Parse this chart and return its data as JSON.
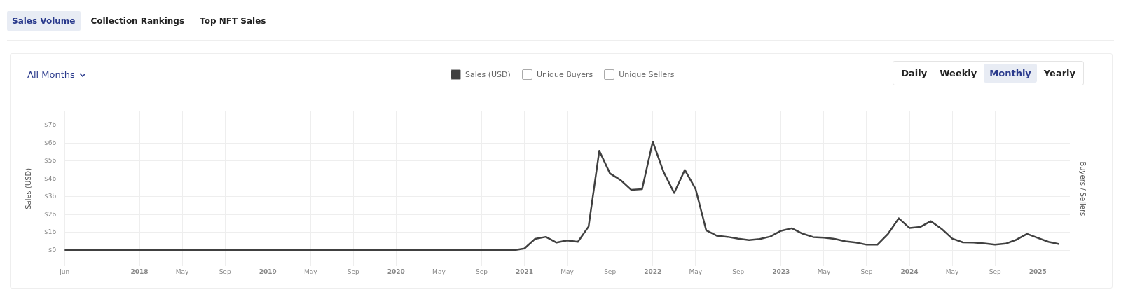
{
  "chart_data": {
    "type": "line",
    "ylabel": "Sales (USD)",
    "y2label": "Buyers / Sellers",
    "annotations": [
      "Sales Volume",
      "Collection Rankings",
      "Top NFT Sales",
      "All Months",
      "Daily",
      "Weekly",
      "Monthly",
      "Yearly"
    ],
    "x": [
      "2017-06",
      "2017-07",
      "2017-08",
      "2017-09",
      "2017-10",
      "2017-11",
      "2017-12",
      "2018-01",
      "2018-02",
      "2018-03",
      "2018-04",
      "2018-05",
      "2018-06",
      "2018-07",
      "2018-08",
      "2018-09",
      "2018-10",
      "2018-11",
      "2018-12",
      "2019-01",
      "2019-02",
      "2019-03",
      "2019-04",
      "2019-05",
      "2019-06",
      "2019-07",
      "2019-08",
      "2019-09",
      "2019-10",
      "2019-11",
      "2019-12",
      "2020-01",
      "2020-02",
      "2020-03",
      "2020-04",
      "2020-05",
      "2020-06",
      "2020-07",
      "2020-08",
      "2020-09",
      "2020-10",
      "2020-11",
      "2020-12",
      "2021-01",
      "2021-02",
      "2021-03",
      "2021-04",
      "2021-05",
      "2021-06",
      "2021-07",
      "2021-08",
      "2021-09",
      "2021-10",
      "2021-11",
      "2021-12",
      "2022-01",
      "2022-02",
      "2022-03",
      "2022-04",
      "2022-05",
      "2022-06",
      "2022-07",
      "2022-08",
      "2022-09",
      "2022-10",
      "2022-11",
      "2022-12",
      "2023-01",
      "2023-02",
      "2023-03",
      "2023-04",
      "2023-05",
      "2023-06",
      "2023-07",
      "2023-08",
      "2023-09",
      "2023-10",
      "2023-11",
      "2023-12",
      "2024-01",
      "2024-02",
      "2024-03",
      "2024-04",
      "2024-05",
      "2024-06",
      "2024-07",
      "2024-08",
      "2024-09",
      "2024-10",
      "2024-11",
      "2024-12",
      "2025-01",
      "2025-02",
      "2025-03"
    ],
    "series": [
      {
        "name": "Sales (USD)",
        "color": "#404040",
        "values": [
          0,
          0,
          0,
          0,
          0,
          0,
          0,
          0,
          0,
          0,
          0,
          0,
          0,
          0,
          0,
          0,
          0,
          0,
          0,
          0,
          0,
          0,
          0,
          0,
          0,
          0,
          0,
          0,
          0,
          0,
          0,
          0,
          0,
          0,
          0,
          0,
          0,
          0,
          0,
          0,
          0,
          0,
          0,
          0.1,
          0.64,
          0.75,
          0.43,
          0.55,
          0.47,
          1.33,
          5.57,
          4.3,
          3.93,
          3.38,
          3.42,
          6.08,
          4.4,
          3.21,
          4.5,
          3.44,
          1.11,
          0.81,
          0.75,
          0.65,
          0.57,
          0.63,
          0.77,
          1.09,
          1.23,
          0.93,
          0.74,
          0.71,
          0.64,
          0.5,
          0.43,
          0.31,
          0.31,
          0.92,
          1.79,
          1.25,
          1.3,
          1.63,
          1.2,
          0.65,
          0.44,
          0.43,
          0.38,
          0.31,
          0.37,
          0.59,
          0.92,
          0.69,
          0.47,
          0.34
        ]
      },
      {
        "name": "Unique Buyers",
        "color": "#ffffff",
        "values": [
          null,
          null,
          null,
          null,
          null,
          null,
          null,
          null,
          null,
          null,
          null,
          null,
          null,
          null,
          null,
          null,
          null,
          null,
          null,
          null,
          null,
          null,
          null,
          null,
          null,
          null,
          null,
          null,
          null,
          null,
          null,
          null,
          null,
          null,
          null,
          null,
          null,
          null,
          null,
          null,
          null,
          null,
          null,
          null,
          null,
          null,
          null,
          null,
          null,
          null,
          null,
          null,
          null,
          null,
          null,
          null,
          null,
          null,
          null,
          null,
          null,
          null,
          null,
          null,
          null,
          null,
          null,
          null,
          null,
          null,
          null,
          null,
          null,
          null,
          null,
          null,
          null,
          null,
          null,
          null,
          null,
          null,
          null,
          null,
          null,
          null,
          null,
          null,
          null,
          null,
          null,
          null,
          null,
          null
        ]
      },
      {
        "name": "Unique Sellers",
        "color": "#ffffff",
        "values": [
          null,
          null,
          null,
          null,
          null,
          null,
          null,
          null,
          null,
          null,
          null,
          null,
          null,
          null,
          null,
          null,
          null,
          null,
          null,
          null,
          null,
          null,
          null,
          null,
          null,
          null,
          null,
          null,
          null,
          null,
          null,
          null,
          null,
          null,
          null,
          null,
          null,
          null,
          null,
          null,
          null,
          null,
          null,
          null,
          null,
          null,
          null,
          null,
          null,
          null,
          null,
          null,
          null,
          null,
          null,
          null,
          null,
          null,
          null,
          null,
          null,
          null,
          null,
          null,
          null,
          null,
          null,
          null,
          null,
          null,
          null,
          null,
          null,
          null,
          null,
          null,
          null,
          null,
          null,
          null,
          null,
          null,
          null,
          null,
          null,
          null,
          null,
          null,
          null,
          null,
          null,
          null,
          null,
          null
        ]
      }
    ],
    "xlim": [
      "2017-06",
      "2025-04"
    ],
    "xticks": [
      {
        "value": "2017-06",
        "label": "Jun"
      },
      {
        "value": "2018-01",
        "label": "2018"
      },
      {
        "value": "2018-05",
        "label": "May"
      },
      {
        "value": "2018-09",
        "label": "Sep"
      },
      {
        "value": "2019-01",
        "label": "2019"
      },
      {
        "value": "2019-05",
        "label": "May"
      },
      {
        "value": "2019-09",
        "label": "Sep"
      },
      {
        "value": "2020-01",
        "label": "2020"
      },
      {
        "value": "2020-05",
        "label": "May"
      },
      {
        "value": "2020-09",
        "label": "Sep"
      },
      {
        "value": "2021-01",
        "label": "2021"
      },
      {
        "value": "2021-05",
        "label": "May"
      },
      {
        "value": "2021-09",
        "label": "Sep"
      },
      {
        "value": "2022-01",
        "label": "2022"
      },
      {
        "value": "2022-05",
        "label": "May"
      },
      {
        "value": "2022-09",
        "label": "Sep"
      },
      {
        "value": "2023-01",
        "label": "2023"
      },
      {
        "value": "2023-05",
        "label": "May"
      },
      {
        "value": "2023-09",
        "label": "Sep"
      },
      {
        "value": "2024-01",
        "label": "2024"
      },
      {
        "value": "2024-05",
        "label": "May"
      },
      {
        "value": "2024-09",
        "label": "Sep"
      },
      {
        "value": "2025-01",
        "label": "2025"
      }
    ],
    "ylim": [
      -0.9,
      7.8
    ],
    "yticks": [
      {
        "value": 0,
        "label": "$0"
      },
      {
        "value": 1,
        "label": "$1b"
      },
      {
        "value": 2,
        "label": "$2b"
      },
      {
        "value": 3,
        "label": "$3b"
      },
      {
        "value": 4,
        "label": "$4b"
      },
      {
        "value": 5,
        "label": "$5b"
      },
      {
        "value": 6,
        "label": "$6b"
      },
      {
        "value": 7,
        "label": "$7b"
      }
    ],
    "grid": true,
    "legend": "top",
    "marker": "none",
    "line_style": "solid"
  }
}
